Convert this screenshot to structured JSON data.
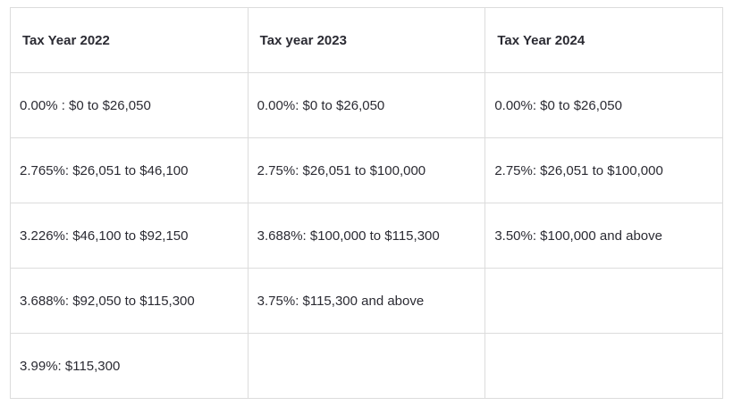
{
  "table": {
    "header": [
      "Tax Year 2022",
      "Tax year 2023",
      "Tax Year 2024"
    ],
    "rows": [
      [
        "0.00% : $0 to $26,050",
        "0.00%: $0 to $26,050",
        "0.00%: $0 to $26,050"
      ],
      [
        "2.765%: $26,051 to $46,100",
        "2.75%: $26,051 to $100,000",
        "2.75%: $26,051 to $100,000"
      ],
      [
        "3.226%: $46,100 to $92,150",
        "3.688%: $100,000 to $115,300",
        "3.50%: $100,000 and above"
      ],
      [
        "3.688%: $92,050 to $115,300",
        "3.75%: $115,300 and above"
      ],
      [
        "3.99%: $115,300"
      ]
    ]
  }
}
